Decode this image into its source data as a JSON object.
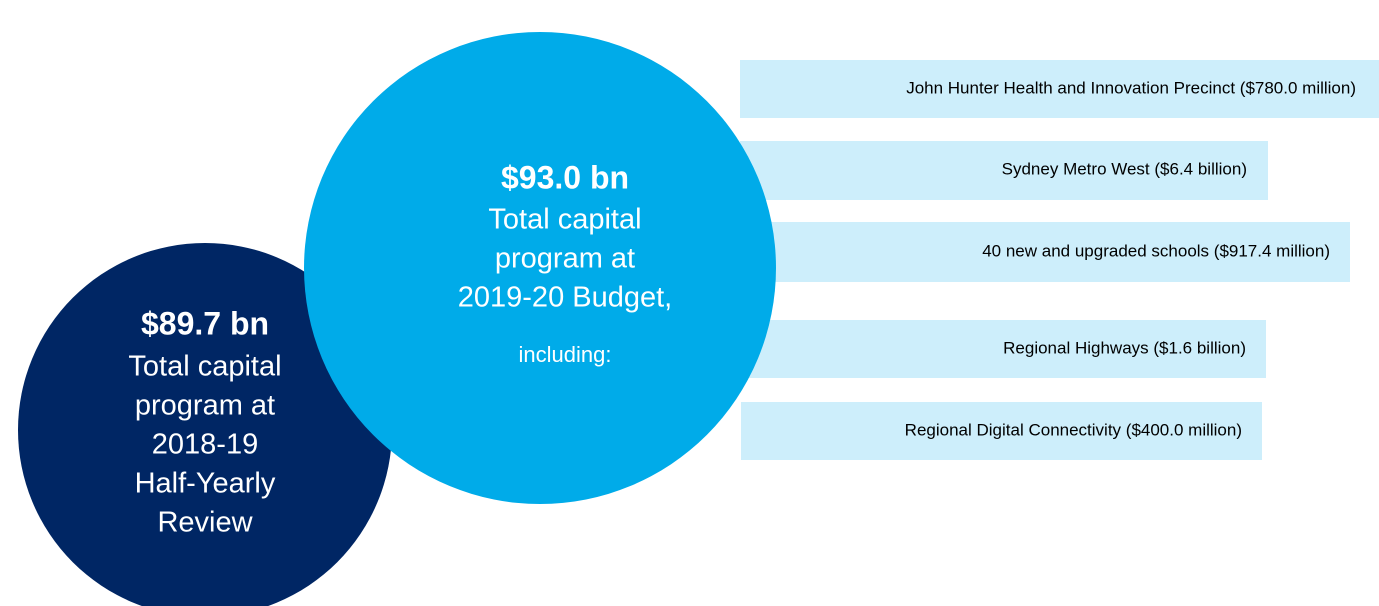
{
  "outer_circle": {
    "amount": "$89.7 bn",
    "lines": [
      "Total capital",
      "program at",
      "2018-19",
      "Half-Yearly",
      "Review"
    ]
  },
  "main_circle": {
    "amount": "$93.0 bn",
    "lines": [
      "Total capital",
      "program at",
      "2019-20 Budget,"
    ],
    "note": "including:"
  },
  "items": [
    "John Hunter Health and Innovation Precinct ($780.0 million)",
    "Sydney Metro West ($6.4 billion)",
    "40 new and upgraded schools ($917.4 million)",
    "Regional Highways ($1.6 billion)",
    "Regional Digital Connectivity ($400.0 million)"
  ]
}
